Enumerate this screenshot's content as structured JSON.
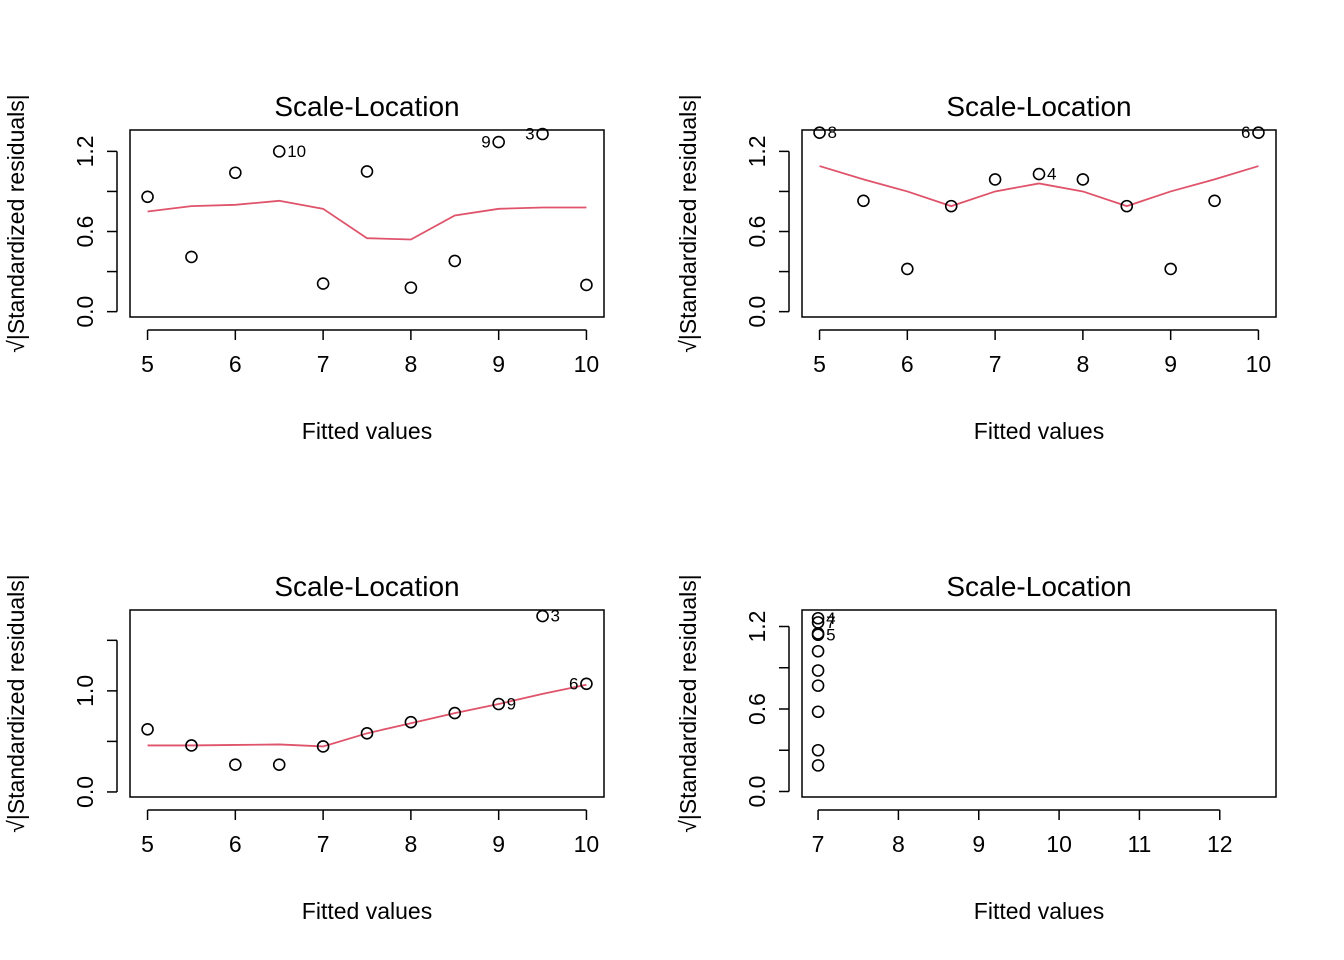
{
  "figure": {
    "colors": {
      "points": "#000000",
      "smooth": "#DF536B"
    }
  },
  "chart_data": [
    {
      "type": "scatter",
      "title": "Scale-Location",
      "xlabel": "Fitted values",
      "ylabel": "√|Standardized residuals|",
      "xlim": [
        4.8,
        10.2
      ],
      "ylim": [
        -0.04,
        1.36
      ],
      "x_ticks": [
        5,
        6,
        7,
        8,
        9,
        10
      ],
      "y_ticks": [
        0.0,
        0.3,
        0.6,
        0.9,
        1.2
      ],
      "y_tick_labels": [
        "0.0",
        "",
        "0.6",
        "",
        "1.2"
      ],
      "points": {
        "x": [
          5,
          5.5,
          6,
          6.5,
          7,
          7.5,
          8,
          8.5,
          9,
          9.5,
          10
        ],
        "y": [
          0.86,
          0.41,
          1.04,
          1.2,
          0.21,
          1.05,
          0.18,
          0.38,
          1.27,
          1.33,
          0.2
        ]
      },
      "point_labels": [
        {
          "text": "10",
          "x": 6.5,
          "y": 1.2,
          "side": "right"
        },
        {
          "text": "9",
          "x": 9.0,
          "y": 1.27,
          "side": "left"
        },
        {
          "text": "3",
          "x": 9.5,
          "y": 1.33,
          "side": "left"
        }
      ],
      "smooth": {
        "x": [
          5,
          5.5,
          6,
          6.5,
          7,
          7.5,
          8,
          8.5,
          9,
          9.5,
          10
        ],
        "y": [
          0.75,
          0.79,
          0.8,
          0.83,
          0.77,
          0.55,
          0.54,
          0.72,
          0.77,
          0.78,
          0.78
        ]
      }
    },
    {
      "type": "scatter",
      "title": "Scale-Location",
      "xlabel": "Fitted values",
      "ylabel": "√|Standardized residuals|",
      "xlim": [
        4.8,
        10.2
      ],
      "ylim": [
        -0.04,
        1.36
      ],
      "x_ticks": [
        5,
        6,
        7,
        8,
        9,
        10
      ],
      "y_ticks": [
        0.0,
        0.3,
        0.6,
        0.9,
        1.2
      ],
      "y_tick_labels": [
        "0.0",
        "",
        "0.6",
        "",
        "1.2"
      ],
      "points": {
        "x": [
          5,
          5.5,
          6,
          6.5,
          7,
          7.5,
          8,
          8.5,
          9,
          9.5,
          10
        ],
        "y": [
          1.34,
          0.83,
          0.32,
          0.79,
          0.99,
          1.03,
          0.99,
          0.79,
          0.32,
          0.83,
          1.34
        ]
      },
      "point_labels": [
        {
          "text": "8",
          "x": 5.0,
          "y": 1.34,
          "side": "right"
        },
        {
          "text": "4",
          "x": 7.5,
          "y": 1.03,
          "side": "right"
        },
        {
          "text": "6",
          "x": 10.0,
          "y": 1.34,
          "side": "left"
        }
      ],
      "smooth": {
        "x": [
          5,
          5.5,
          6,
          6.5,
          7,
          7.5,
          8,
          8.5,
          9,
          9.5,
          10
        ],
        "y": [
          1.09,
          0.99,
          0.9,
          0.79,
          0.9,
          0.96,
          0.9,
          0.79,
          0.9,
          0.99,
          1.09
        ]
      }
    },
    {
      "type": "scatter",
      "title": "Scale-Location",
      "xlabel": "Fitted values",
      "ylabel": "√|Standardized residuals|",
      "xlim": [
        4.8,
        10.2
      ],
      "ylim": [
        -0.05,
        1.8
      ],
      "x_ticks": [
        5,
        6,
        7,
        8,
        9,
        10
      ],
      "y_ticks": [
        0.0,
        0.5,
        1.0,
        1.5
      ],
      "y_tick_labels": [
        "0.0",
        "",
        "1.0",
        ""
      ],
      "points": {
        "x": [
          5,
          5.5,
          6,
          6.5,
          7,
          7.5,
          8,
          8.5,
          9,
          9.5,
          10
        ],
        "y": [
          0.62,
          0.46,
          0.27,
          0.27,
          0.45,
          0.58,
          0.69,
          0.78,
          0.87,
          1.74,
          1.07
        ]
      },
      "point_labels": [
        {
          "text": "3",
          "x": 9.5,
          "y": 1.74,
          "side": "right"
        },
        {
          "text": "9",
          "x": 9.0,
          "y": 0.87,
          "side": "right"
        },
        {
          "text": "6",
          "x": 10.0,
          "y": 1.07,
          "side": "left"
        }
      ],
      "smooth": {
        "x": [
          5,
          5.5,
          6,
          6.5,
          7,
          7.5,
          8,
          8.5,
          9,
          9.5,
          10
        ],
        "y": [
          0.46,
          0.46,
          0.465,
          0.47,
          0.45,
          0.58,
          0.68,
          0.78,
          0.87,
          0.97,
          1.06
        ]
      }
    },
    {
      "type": "scatter",
      "title": "Scale-Location",
      "xlabel": "Fitted values",
      "ylabel": "√|Standardized residuals|",
      "xlim": [
        6.8,
        12.7
      ],
      "ylim": [
        -0.04,
        1.32
      ],
      "x_ticks": [
        7,
        8,
        9,
        10,
        11,
        12
      ],
      "y_ticks": [
        0.0,
        0.3,
        0.6,
        0.9,
        1.2
      ],
      "y_tick_labels": [
        "0.0",
        "",
        "0.6",
        "",
        "1.2"
      ],
      "points": {
        "x": [
          7,
          7,
          7,
          7,
          7,
          7,
          7,
          7,
          7,
          7
        ],
        "y": [
          1.26,
          1.23,
          1.15,
          1.14,
          1.02,
          0.88,
          0.77,
          0.58,
          0.3,
          0.19
        ]
      },
      "point_labels": [
        {
          "text": "4",
          "x": 7.0,
          "y": 1.26,
          "side": "right"
        },
        {
          "text": "7",
          "x": 7.0,
          "y": 1.23,
          "side": "right"
        },
        {
          "text": "5",
          "x": 7.0,
          "y": 1.14,
          "side": "right"
        }
      ],
      "smooth": null
    }
  ]
}
